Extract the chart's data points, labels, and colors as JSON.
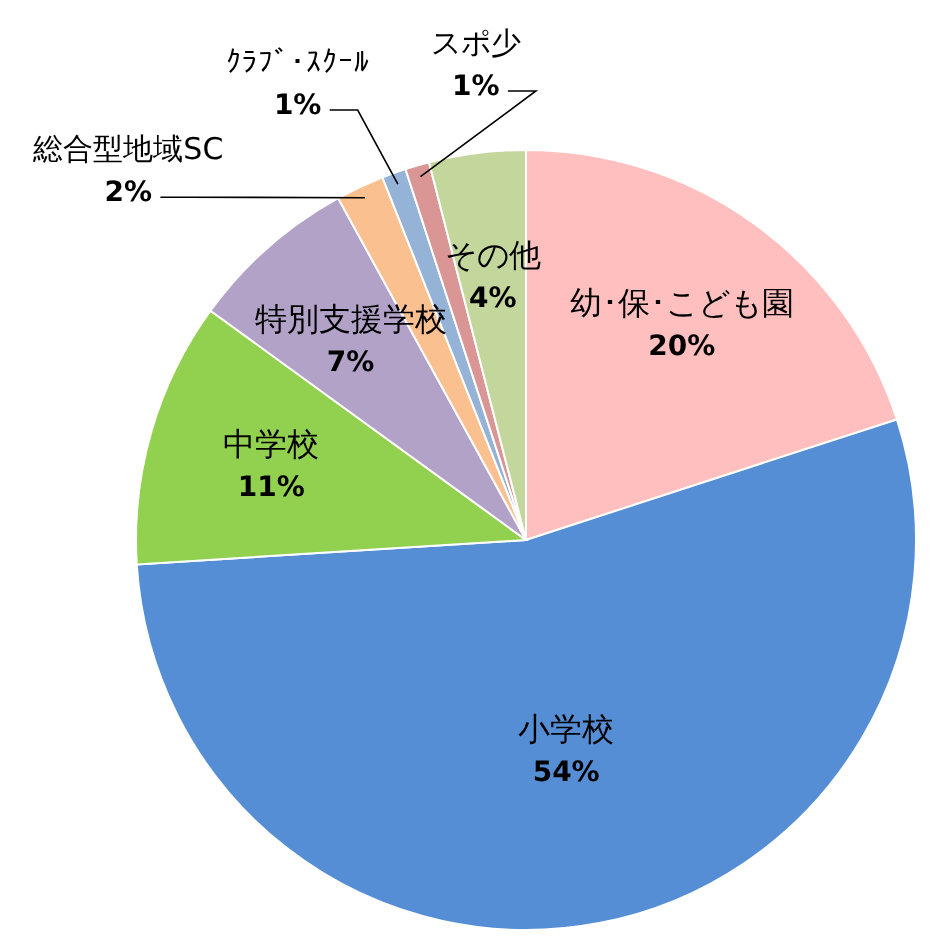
{
  "chart_data": {
    "type": "pie",
    "categories": [
      "幼･保･こども園",
      "小学校",
      "中学校",
      "特別支援学校",
      "総合型地域SC",
      "ｸﾗﾌﾞ･ｽｸｰﾙ",
      "スポ少",
      "その他"
    ],
    "values": [
      20,
      54,
      11,
      7,
      2,
      1,
      1,
      4
    ],
    "colors": [
      "#ffbfbf",
      "#558ed5",
      "#92d050",
      "#b3a2c7",
      "#fac090",
      "#95b3d7",
      "#d99694",
      "#c3d69b"
    ],
    "value_labels": [
      "20%",
      "54%",
      "11%",
      "7%",
      "2%",
      "1%",
      "1%",
      "4%"
    ]
  }
}
